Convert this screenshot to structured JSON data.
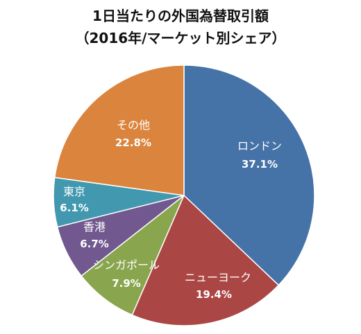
{
  "chart_data": {
    "type": "pie",
    "title": "1日当たりの外国為替取引額",
    "subtitle": "（2016年/マーケット別シェア）",
    "slices": [
      {
        "name": "ロンドン",
        "value": 37.1,
        "label": "37.1%",
        "color": "#4572A7"
      },
      {
        "name": "ニューヨーク",
        "value": 19.4,
        "label": "19.4%",
        "color": "#AA4643"
      },
      {
        "name": "シンガポール",
        "value": 7.9,
        "label": "7.9%",
        "color": "#89A54E"
      },
      {
        "name": "香港",
        "value": 6.7,
        "label": "6.7%",
        "color": "#71588F"
      },
      {
        "name": "東京",
        "value": 6.1,
        "label": "6.1%",
        "color": "#4198AF"
      },
      {
        "name": "その他",
        "value": 22.8,
        "label": "22.8%",
        "color": "#DB843D"
      }
    ],
    "start_angle_deg": 0,
    "direction": "clockwise"
  }
}
